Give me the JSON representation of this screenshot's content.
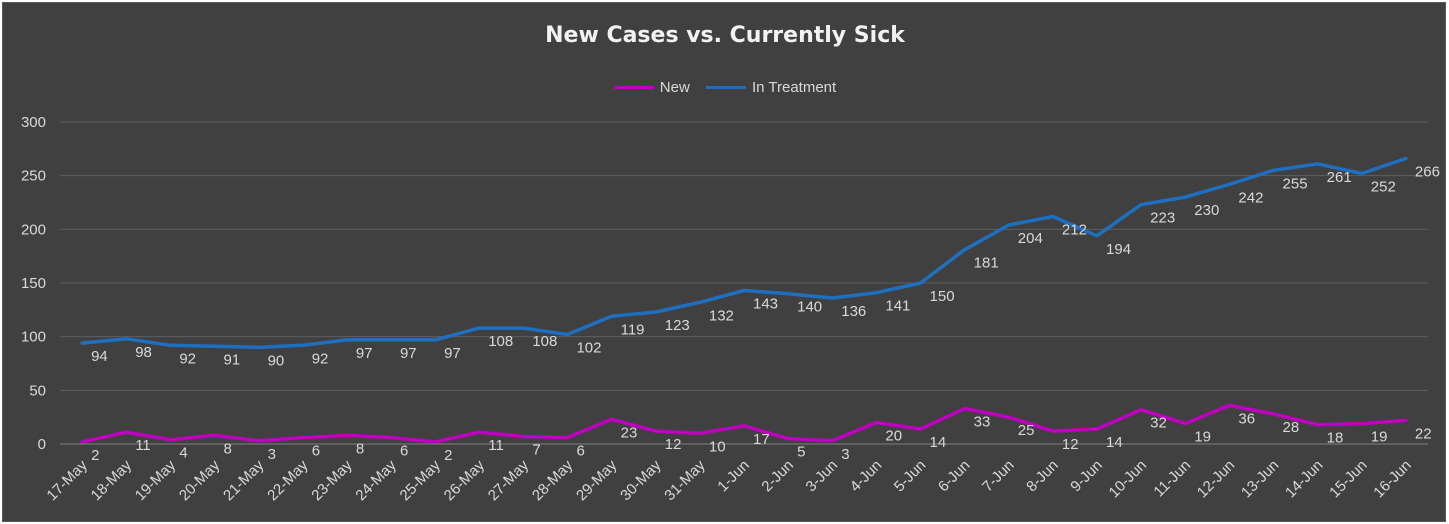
{
  "chart_data": {
    "type": "line",
    "title": "New Cases vs. Currently Sick",
    "xlabel": "",
    "ylabel": "",
    "ylim": [
      0,
      300
    ],
    "yticks": [
      0,
      50,
      100,
      150,
      200,
      250,
      300
    ],
    "grid": true,
    "legend_position": "top",
    "categories": [
      "17-May",
      "18-May",
      "19-May",
      "20-May",
      "21-May",
      "22-May",
      "23-May",
      "24-May",
      "25-May",
      "26-May",
      "27-May",
      "28-May",
      "29-May",
      "30-May",
      "31-May",
      "1-Jun",
      "2-Jun",
      "3-Jun",
      "4-Jun",
      "5-Jun",
      "6-Jun",
      "7-Jun",
      "8-Jun",
      "9-Jun",
      "10-Jun",
      "11-Jun",
      "12-Jun",
      "13-Jun",
      "14-Jun",
      "15-Jun",
      "16-Jun"
    ],
    "series": [
      {
        "name": "New",
        "color": "#c000c0",
        "values": [
          2,
          11,
          4,
          8,
          3,
          6,
          8,
          6,
          2,
          11,
          7,
          6,
          23,
          12,
          10,
          17,
          5,
          3,
          20,
          14,
          33,
          25,
          12,
          14,
          32,
          19,
          36,
          28,
          18,
          19,
          22
        ]
      },
      {
        "name": "In Treatment",
        "color": "#1f6fc0",
        "values": [
          94,
          98,
          92,
          91,
          90,
          92,
          97,
          97,
          97,
          108,
          108,
          102,
          119,
          123,
          132,
          143,
          140,
          136,
          141,
          150,
          181,
          204,
          212,
          194,
          223,
          230,
          242,
          255,
          261,
          252,
          266
        ]
      }
    ]
  }
}
